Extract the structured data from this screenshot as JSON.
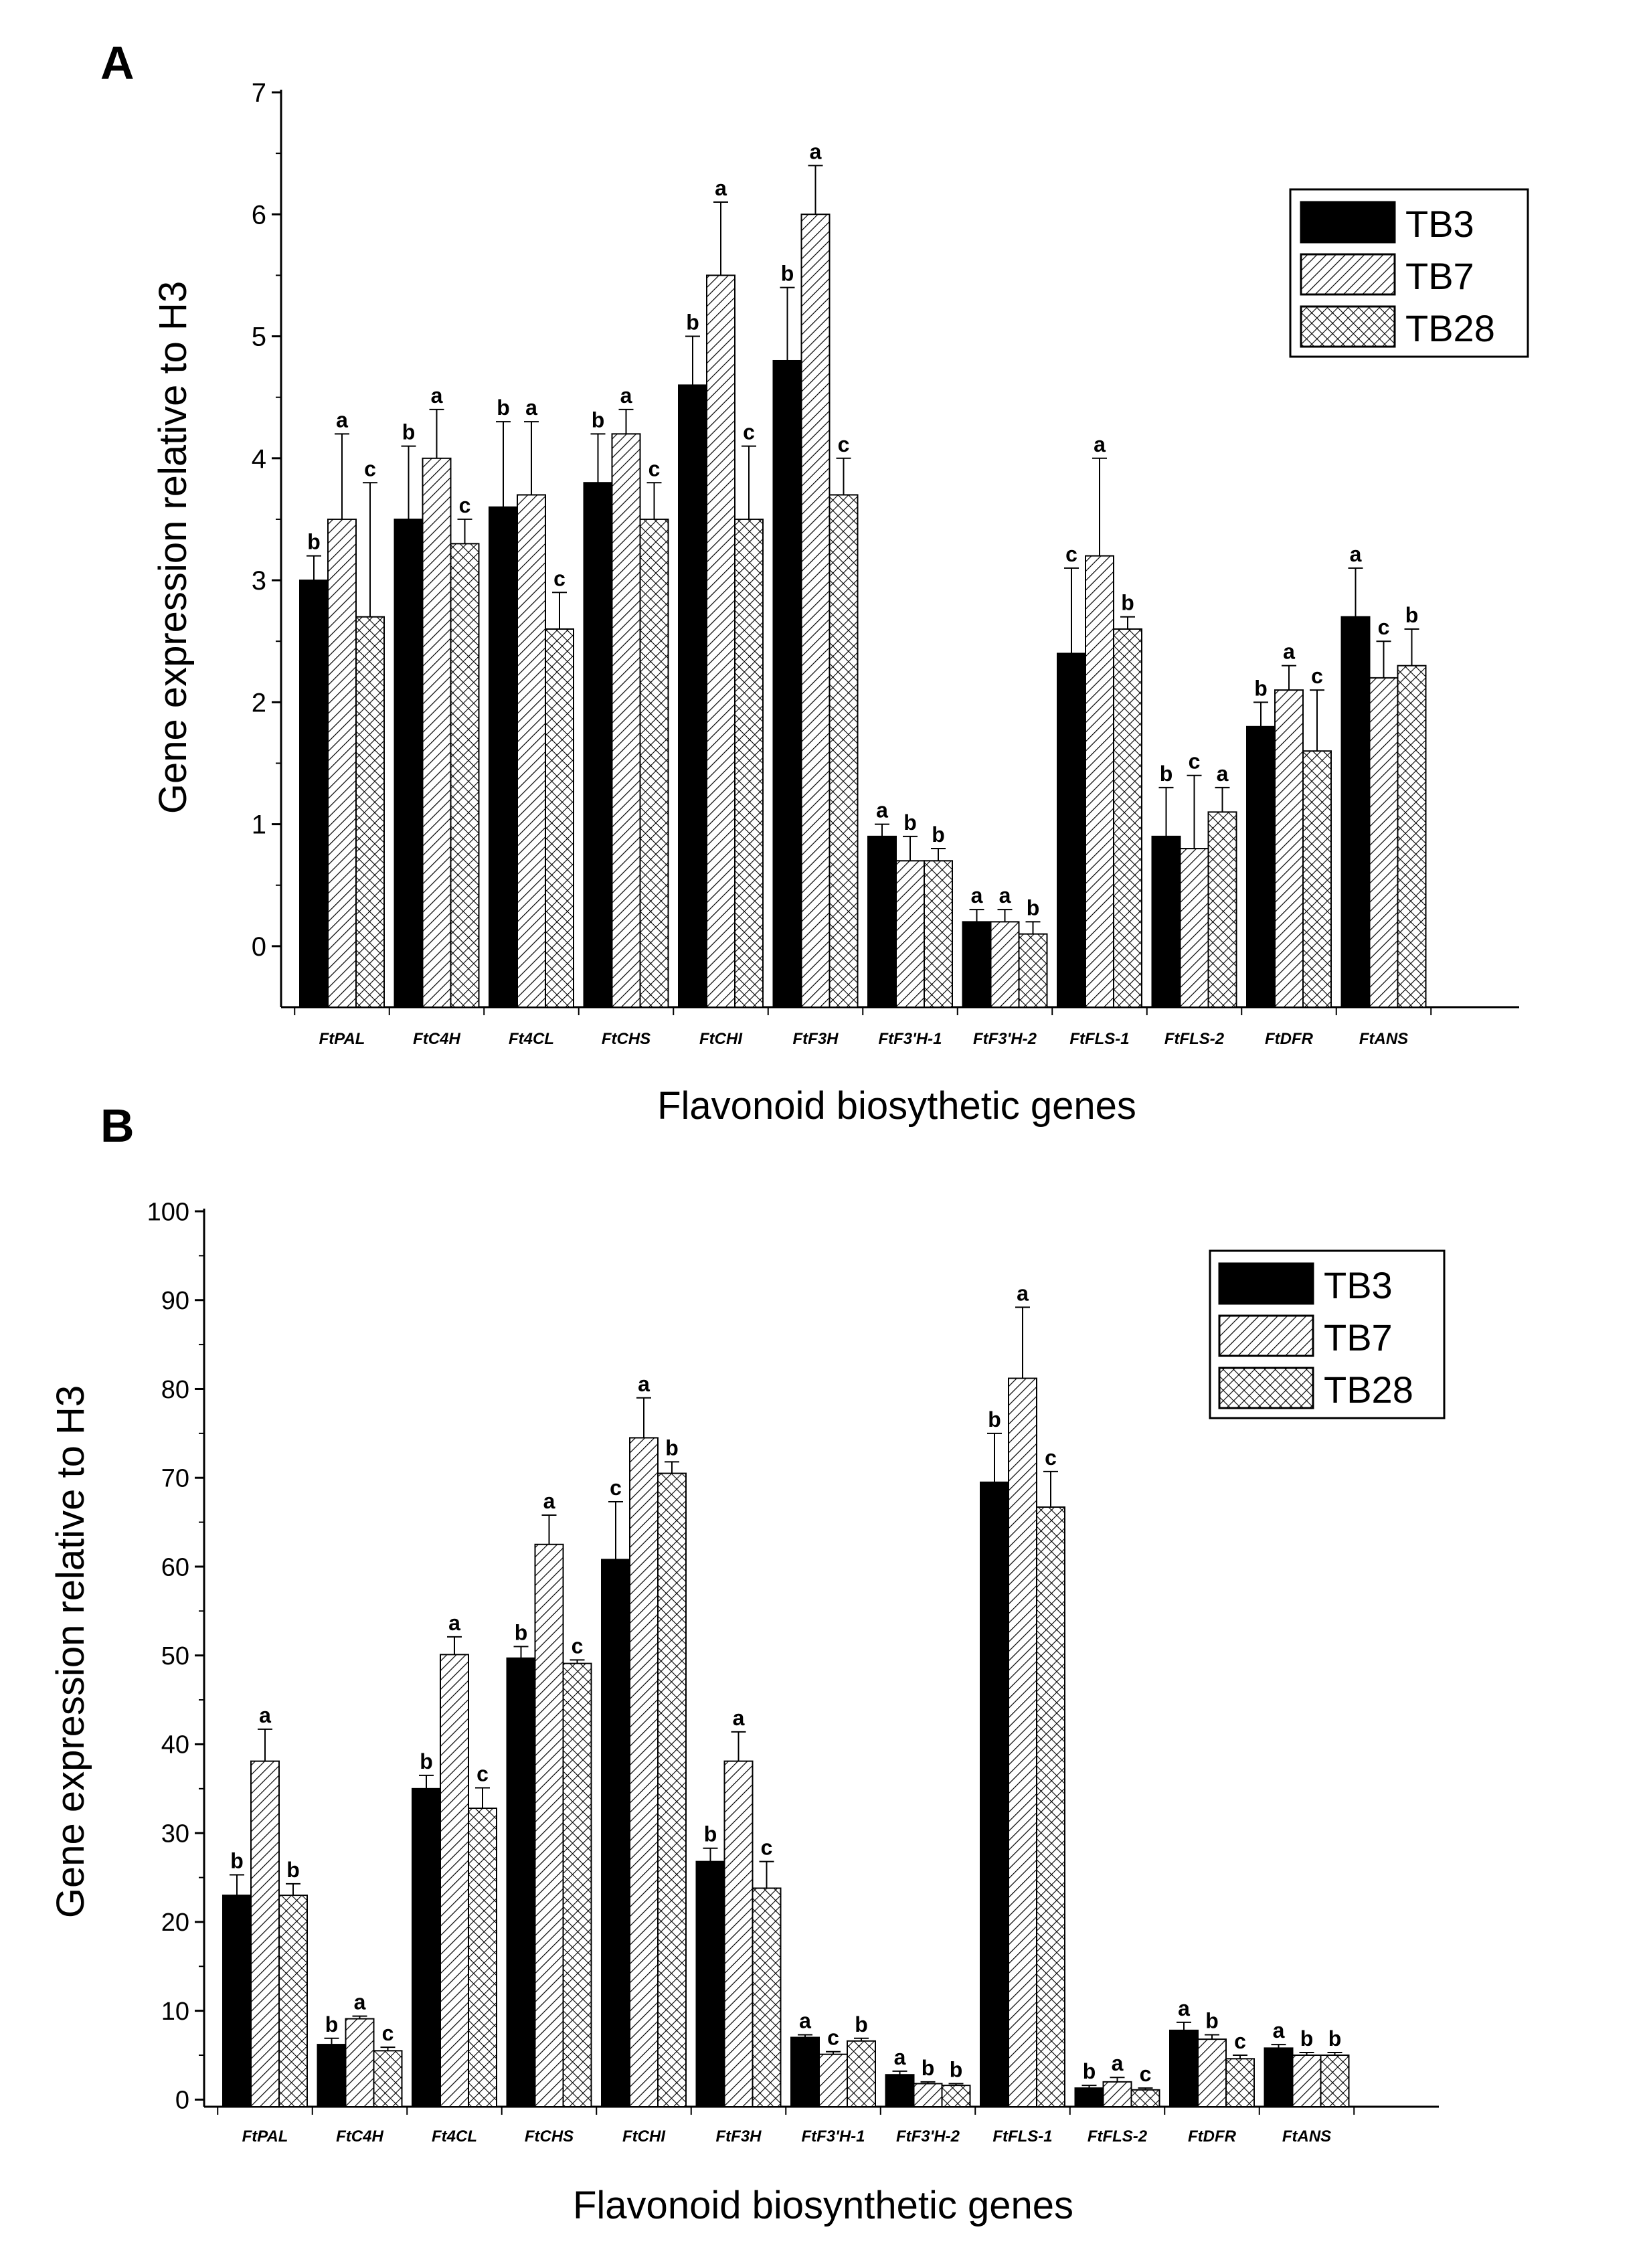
{
  "chart_data": [
    {
      "panel_label": "A",
      "type": "bar",
      "xlabel": "Flavonoid biosythetic genes",
      "ylabel": "Gene expression relative to H3",
      "ylim": [
        -0.5,
        7
      ],
      "yticks": [
        0,
        1,
        2,
        3,
        4,
        5,
        6,
        7
      ],
      "legend_position": "top-right",
      "categories": [
        "FtPAL",
        "FtC4H",
        "Ft4CL",
        "FtCHS",
        "FtCHI",
        "FtF3H",
        "FtF3'H-1",
        "FtF3'H-2",
        "FtFLS-1",
        "FtFLS-2",
        "FtDFR",
        "FtANS"
      ],
      "series": [
        {
          "name": "TB3",
          "pattern": "solid",
          "values": [
            3.0,
            3.5,
            3.6,
            3.8,
            4.6,
            4.8,
            0.9,
            0.2,
            2.4,
            0.9,
            1.8,
            2.7
          ],
          "errors": [
            0.2,
            0.6,
            0.7,
            0.4,
            0.4,
            0.6,
            0.1,
            0.1,
            0.7,
            0.4,
            0.2,
            0.4
          ],
          "letters": [
            "b",
            "b",
            "b",
            "b",
            "b",
            "b",
            "a",
            "a",
            "c",
            "b",
            "b",
            "a"
          ]
        },
        {
          "name": "TB7",
          "pattern": "diagonal",
          "values": [
            3.5,
            4.0,
            3.7,
            4.2,
            5.5,
            6.0,
            0.7,
            0.2,
            3.2,
            0.8,
            2.1,
            2.2
          ],
          "errors": [
            0.7,
            0.4,
            0.6,
            0.2,
            0.6,
            0.4,
            0.2,
            0.1,
            0.8,
            0.6,
            0.2,
            0.3
          ],
          "letters": [
            "a",
            "a",
            "a",
            "a",
            "a",
            "a",
            "b",
            "a",
            "a",
            "c",
            "a",
            "c"
          ]
        },
        {
          "name": "TB28",
          "pattern": "crosshatch",
          "values": [
            2.7,
            3.3,
            2.6,
            3.5,
            3.5,
            3.7,
            0.7,
            0.1,
            2.6,
            1.1,
            1.6,
            2.3
          ],
          "errors": [
            1.1,
            0.2,
            0.3,
            0.3,
            0.6,
            0.3,
            0.1,
            0.1,
            0.1,
            0.2,
            0.5,
            0.3
          ],
          "letters": [
            "c",
            "c",
            "c",
            "c",
            "c",
            "c",
            "b",
            "b",
            "b",
            "a",
            "c",
            "b"
          ]
        }
      ]
    },
    {
      "panel_label": "B",
      "type": "bar",
      "xlabel": "Flavonoid biosynthetic genes",
      "ylabel": "Gene expression relative to H3",
      "ylim": [
        -0.8,
        100
      ],
      "yticks": [
        0,
        10,
        20,
        30,
        40,
        50,
        60,
        70,
        80,
        90,
        100
      ],
      "legend_position": "top-right",
      "categories": [
        "FtPAL",
        "FtC4H",
        "Ft4CL",
        "FtCHS",
        "FtCHI",
        "FtF3H",
        "FtF3'H-1",
        "FtF3'H-2",
        "FtFLS-1",
        "FtFLS-2",
        "FtDFR",
        "FtANS"
      ],
      "series": [
        {
          "name": "TB3",
          "pattern": "solid",
          "values": [
            23,
            6.2,
            35,
            49.7,
            60.8,
            26.8,
            7,
            2.8,
            69.5,
            1.3,
            7.8,
            5.8
          ],
          "errors": [
            2.3,
            0.7,
            1.5,
            1.3,
            6.5,
            1.5,
            0.3,
            0.4,
            5.5,
            0.3,
            0.9,
            0.4
          ],
          "letters": [
            "b",
            "b",
            "b",
            "b",
            "c",
            "b",
            "a",
            "a",
            "b",
            "b",
            "a",
            "a"
          ]
        },
        {
          "name": "TB7",
          "pattern": "diagonal",
          "values": [
            38.1,
            9.1,
            50.1,
            62.5,
            74.5,
            38.1,
            5.1,
            1.8,
            81.2,
            2,
            6.8,
            5
          ],
          "errors": [
            3.6,
            0.3,
            2,
            3.3,
            4.5,
            3.3,
            0.3,
            0.2,
            8,
            0.5,
            0.5,
            0.3
          ],
          "letters": [
            "a",
            "a",
            "a",
            "a",
            "a",
            "a",
            "c",
            "b",
            "a",
            "a",
            "b",
            "b"
          ]
        },
        {
          "name": "TB28",
          "pattern": "crosshatch",
          "values": [
            23,
            5.5,
            32.8,
            49.1,
            70.5,
            23.8,
            6.6,
            1.6,
            66.7,
            1.1,
            4.6,
            5
          ],
          "errors": [
            1.3,
            0.4,
            2.3,
            0.4,
            1.3,
            3,
            0.3,
            0.2,
            4,
            0.2,
            0.4,
            0.3
          ],
          "letters": [
            "b",
            "c",
            "c",
            "c",
            "b",
            "c",
            "b",
            "b",
            "c",
            "c",
            "c",
            "b"
          ]
        }
      ]
    }
  ]
}
